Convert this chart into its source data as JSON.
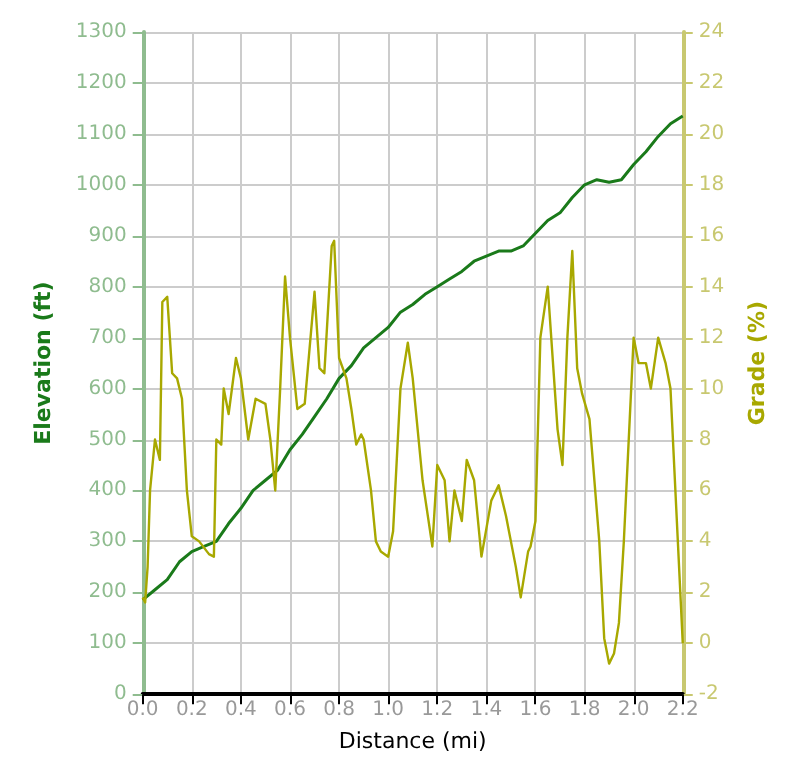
{
  "chart_data": {
    "type": "line",
    "xlabel": "Distance (mi)",
    "ylabel": "Elevation (ft)",
    "y2label": "Grade (%)",
    "xlim": [
      0,
      2.2
    ],
    "xticks": [
      {
        "value": 0,
        "label": "0.0"
      },
      0.2,
      0.4,
      0.6,
      0.8,
      {
        "value": 1,
        "label": "1.0"
      },
      1.2,
      1.4,
      1.6,
      1.8,
      {
        "value": 2,
        "label": "2.0"
      },
      2.2
    ],
    "ylim": [
      0,
      1300
    ],
    "yticks": [
      0,
      100,
      200,
      300,
      400,
      500,
      600,
      700,
      800,
      900,
      1000,
      1100,
      1200,
      1300
    ],
    "y2lim": [
      -2,
      24
    ],
    "y2ticks": [
      -2,
      0,
      2,
      4,
      6,
      8,
      10,
      12,
      14,
      16,
      18,
      20,
      22,
      24
    ],
    "grid": true,
    "marker": "none",
    "line_style": "solid",
    "series": [
      {
        "color": "#1a7a1a",
        "x": [
          0,
          0.05,
          0.1,
          0.15,
          0.2,
          0.25,
          0.3,
          0.35,
          0.4,
          0.45,
          0.5,
          0.55,
          0.6,
          0.65,
          0.7,
          0.75,
          0.8,
          0.85,
          0.9,
          0.95,
          1.0,
          1.05,
          1.1,
          1.15,
          1.2,
          1.25,
          1.3,
          1.35,
          1.4,
          1.45,
          1.5,
          1.55,
          1.6,
          1.65,
          1.7,
          1.75,
          1.8,
          1.85,
          1.9,
          1.95,
          2.0,
          2.05,
          2.1,
          2.15,
          2.2
        ],
        "values": [
          185,
          205,
          225,
          260,
          280,
          290,
          300,
          335,
          365,
          400,
          420,
          440,
          480,
          510,
          545,
          580,
          620,
          645,
          680,
          700,
          720,
          750,
          765,
          785,
          800,
          815,
          830,
          850,
          860,
          870,
          870,
          880,
          905,
          930,
          945,
          975,
          1000,
          1010,
          1005,
          1010,
          1040,
          1065,
          1095,
          1120,
          1135
        ]
      },
      {
        "color": "#a8a800",
        "axis": "y2",
        "x": [
          0,
          0.01,
          0.02,
          0.03,
          0.05,
          0.06,
          0.07,
          0.08,
          0.1,
          0.12,
          0.14,
          0.16,
          0.18,
          0.2,
          0.23,
          0.27,
          0.29,
          0.3,
          0.32,
          0.33,
          0.35,
          0.38,
          0.4,
          0.43,
          0.46,
          0.5,
          0.52,
          0.54,
          0.56,
          0.58,
          0.6,
          0.63,
          0.66,
          0.7,
          0.72,
          0.74,
          0.77,
          0.78,
          0.8,
          0.83,
          0.85,
          0.87,
          0.89,
          0.9,
          0.93,
          0.95,
          0.97,
          1.0,
          1.02,
          1.05,
          1.08,
          1.1,
          1.14,
          1.18,
          1.2,
          1.23,
          1.25,
          1.27,
          1.3,
          1.32,
          1.35,
          1.38,
          1.42,
          1.45,
          1.48,
          1.52,
          1.54,
          1.57,
          1.58,
          1.6,
          1.62,
          1.65,
          1.69,
          1.71,
          1.73,
          1.75,
          1.77,
          1.79,
          1.82,
          1.86,
          1.88,
          1.9,
          1.92,
          1.94,
          1.96,
          2.0,
          2.02,
          2.05,
          2.07,
          2.1,
          2.13,
          2.15,
          2.18,
          2.2
        ],
        "values": [
          1.8,
          1.6,
          3,
          6,
          8,
          7.6,
          7.2,
          13.4,
          13.6,
          10.6,
          10.4,
          9.6,
          6,
          4.2,
          4,
          3.5,
          3.4,
          8,
          7.8,
          10,
          9,
          11.2,
          10.4,
          8,
          9.6,
          9.4,
          8,
          6,
          10,
          14.4,
          12,
          9.2,
          9.4,
          13.8,
          10.8,
          10.6,
          15.6,
          15.8,
          11.2,
          10.4,
          9.2,
          7.8,
          8.2,
          8,
          6,
          4,
          3.6,
          3.4,
          4.4,
          10,
          11.8,
          10.4,
          6.4,
          3.8,
          7,
          6.4,
          4,
          6,
          4.8,
          7.2,
          6.4,
          3.4,
          5.6,
          6.2,
          5,
          3,
          1.8,
          3.6,
          3.8,
          4.8,
          12,
          14,
          8.4,
          7,
          12,
          15.4,
          10.8,
          9.8,
          8.8,
          4,
          0.2,
          -0.8,
          -0.4,
          0.8,
          4,
          12,
          11,
          11,
          10,
          12,
          11,
          10,
          4,
          0
        ]
      }
    ]
  }
}
